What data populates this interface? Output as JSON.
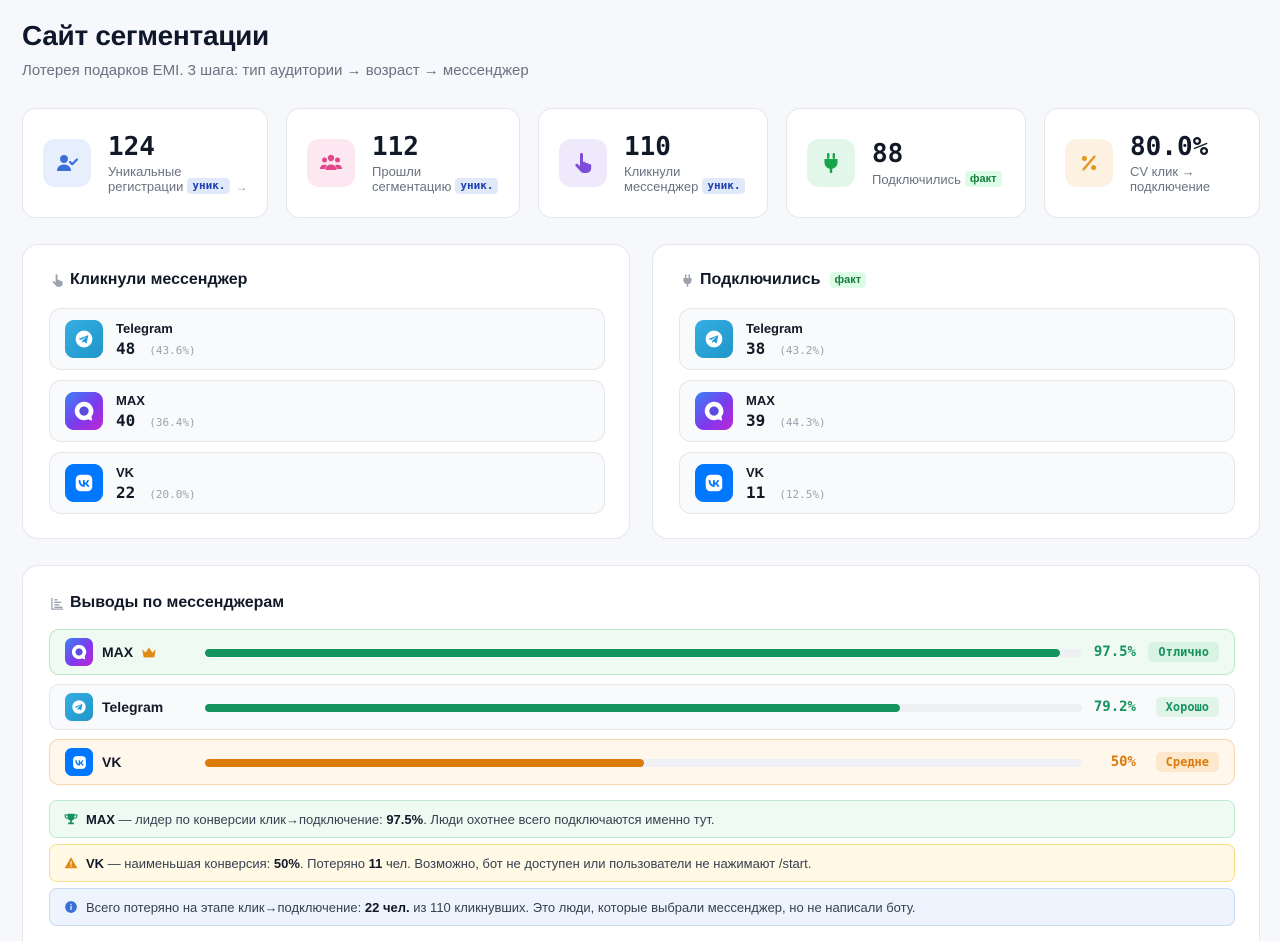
{
  "header": {
    "title": "Сайт сегментации",
    "subtitle": "Лотерея подарков EMI. 3 шага: тип аудитории → возраст → мессенджер"
  },
  "stats": [
    {
      "icon": "user-check-icon",
      "value": "124",
      "label_line1": "Уникальные",
      "label_line2": "регистрации",
      "badge": "уник.",
      "color": "#3b6fd8",
      "bg": "#e7eefc"
    },
    {
      "icon": "users-icon",
      "value": "112",
      "label_line1": "Прошли",
      "label_line2": "сегментацию",
      "badge": "уник.",
      "color": "#e0488a",
      "bg": "#fde7f0"
    },
    {
      "icon": "pointer-hand-icon",
      "value": "110",
      "label_line1": "Кликнули",
      "label_line2": "мессенджер",
      "badge": "уник.",
      "color": "#7c4ddb",
      "bg": "#efe9fc"
    },
    {
      "icon": "plug-icon",
      "value": "88",
      "label_line1": "Подключились",
      "badge": "факт",
      "color": "#16a34a",
      "bg": "#e3f6ea"
    },
    {
      "icon": "percent-icon",
      "value": "80.0%",
      "label_line1": "CV клик →",
      "label_line2": "подключение",
      "color": "#e49a20",
      "bg": "#fdf1e1"
    }
  ],
  "clicked_panel": {
    "title": "Кликнули мессенджер",
    "items": [
      {
        "name": "Telegram",
        "count": "48",
        "pct": "(43.6%)"
      },
      {
        "name": "MAX",
        "count": "40",
        "pct": "(36.4%)"
      },
      {
        "name": "VK",
        "count": "22",
        "pct": "(20.0%)"
      }
    ]
  },
  "connected_panel": {
    "title": "Подключились",
    "badge": "факт",
    "items": [
      {
        "name": "Telegram",
        "count": "38",
        "pct": "(43.2%)"
      },
      {
        "name": "MAX",
        "count": "39",
        "pct": "(44.3%)"
      },
      {
        "name": "VK",
        "count": "11",
        "pct": "(12.5%)"
      }
    ]
  },
  "conclusions": {
    "title": "Выводы по мессенджерам",
    "rows": [
      {
        "name": "MAX",
        "crown": true,
        "pct": "97.5%",
        "fraction": 0.975,
        "badge": "Отлично",
        "color": "#15935e",
        "row_bg": "#effbf2",
        "row_border": "#bbe9c9",
        "badge_bg": "#d9f3e2"
      },
      {
        "name": "Telegram",
        "crown": false,
        "pct": "79.2%",
        "fraction": 0.792,
        "badge": "Хорошо",
        "color": "#15935e",
        "row_bg": "#f9fafb",
        "row_border": "#e5e7eb",
        "badge_bg": "#e1f4e8"
      },
      {
        "name": "VK",
        "crown": false,
        "pct": "50%",
        "fraction": 0.5,
        "badge": "Средне",
        "color": "#dd7a0c",
        "row_bg": "#fff6ec",
        "row_border": "#f5d7b0",
        "badge_bg": "#fde8cd"
      }
    ],
    "notes": {
      "leader": {
        "name": "MAX",
        "text1": " — лидер по конверсии клик→подключение: ",
        "value": "97.5%",
        "text2": ". Люди охотнее всего подключаются именно тут."
      },
      "weak": {
        "name": "VK",
        "text1": " — наименьшая конверсия: ",
        "value": "50%",
        "text2": ". Потеряно ",
        "lost": "11",
        "text3": " чел. Возможно, бот не доступен или пользователи не нажимают /start."
      },
      "info": {
        "text1": "Всего потеряно на этапе клик→подключение: ",
        "value": "22 чел.",
        "text2": " из 110 кликнувших. Это люди, которые выбрали мессенджер, но не написали боту."
      }
    }
  }
}
